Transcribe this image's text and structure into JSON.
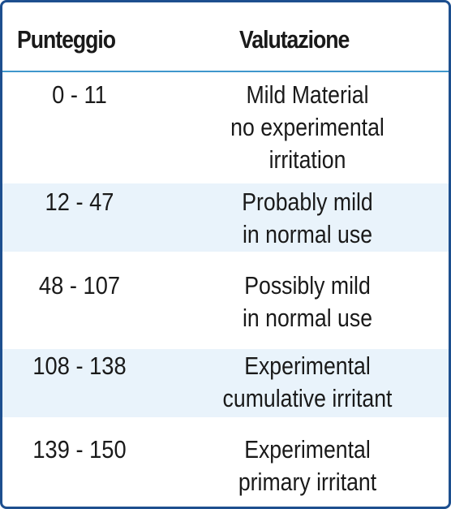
{
  "table": {
    "headers": {
      "score": "Punteggio",
      "evaluation": "Valutazione"
    },
    "rows": [
      {
        "score": "0 - 11",
        "evaluation": [
          "Mild Material",
          "no experimental",
          "irritation"
        ]
      },
      {
        "score": "12 - 47",
        "evaluation": [
          "Probably mild",
          "in normal use"
        ]
      },
      {
        "score": "48 - 107",
        "evaluation": [
          "Possibly mild",
          "in normal use"
        ]
      },
      {
        "score": "108 - 138",
        "evaluation": [
          "Experimental",
          "cumulative irritant"
        ]
      },
      {
        "score": "139 - 150",
        "evaluation": [
          "Experimental",
          "primary irritant"
        ]
      }
    ],
    "colors": {
      "border": "#1d4f8f",
      "header_rule": "#3f97cc",
      "row_shade": "#e9f3fb",
      "text": "#1a1a1a"
    }
  }
}
